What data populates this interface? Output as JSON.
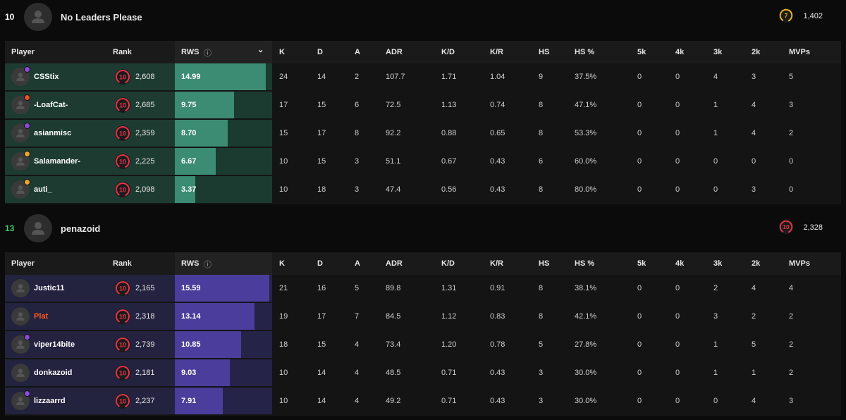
{
  "columns": {
    "player": "Player",
    "rank": "Rank",
    "rws": "RWS",
    "k": "K",
    "d": "D",
    "a": "A",
    "adr": "ADR",
    "kd": "K/D",
    "kr": "K/R",
    "hs": "HS",
    "hsp": "HS %",
    "k5": "5k",
    "k4": "4k",
    "k3": "3k",
    "k2": "2k",
    "mvps": "MVPs"
  },
  "rank_max_rws": 16,
  "teams": [
    {
      "score": "10",
      "name": "No Leaders Please",
      "elo": "1,402",
      "elo_level": "7",
      "colors": {
        "score": "#ffffff",
        "fill": "#3c8b73"
      },
      "players": [
        {
          "name": "CSStix",
          "level": "10",
          "elo": "2,608",
          "rws": "14.99",
          "k": "24",
          "d": "14",
          "a": "2",
          "adr": "107.7",
          "kd": "1.71",
          "kr": "1.04",
          "hs": "9",
          "hsp": "37.5%",
          "k5": "0",
          "k4": "0",
          "k3": "4",
          "k2": "3",
          "mvps": "5",
          "badge": "#8a4bd6",
          "name_color": "#ffffff"
        },
        {
          "name": "-LoafCat-",
          "level": "10",
          "elo": "2,685",
          "rws": "9.75",
          "k": "17",
          "d": "15",
          "a": "6",
          "adr": "72.5",
          "kd": "1.13",
          "kr": "0.74",
          "hs": "8",
          "hsp": "47.1%",
          "k5": "0",
          "k4": "0",
          "k3": "1",
          "k2": "4",
          "mvps": "3",
          "badge": "#e0502c",
          "name_color": "#ffffff"
        },
        {
          "name": "asianmisc",
          "level": "10",
          "elo": "2,359",
          "rws": "8.70",
          "k": "15",
          "d": "17",
          "a": "8",
          "adr": "92.2",
          "kd": "0.88",
          "kr": "0.65",
          "hs": "8",
          "hsp": "53.3%",
          "k5": "0",
          "k4": "0",
          "k3": "1",
          "k2": "4",
          "mvps": "2",
          "badge": "#8a4bd6",
          "name_color": "#ffffff"
        },
        {
          "name": "Salamander-",
          "level": "10",
          "elo": "2,225",
          "rws": "6.67",
          "k": "10",
          "d": "15",
          "a": "3",
          "adr": "51.1",
          "kd": "0.67",
          "kr": "0.43",
          "hs": "6",
          "hsp": "60.0%",
          "k5": "0",
          "k4": "0",
          "k3": "0",
          "k2": "0",
          "mvps": "0",
          "badge": "#e6a531",
          "name_color": "#ffffff"
        },
        {
          "name": "auti_",
          "level": "10",
          "elo": "2,098",
          "rws": "3.37",
          "k": "10",
          "d": "18",
          "a": "3",
          "adr": "47.4",
          "kd": "0.56",
          "kr": "0.43",
          "hs": "8",
          "hsp": "80.0%",
          "k5": "0",
          "k4": "0",
          "k3": "0",
          "k2": "3",
          "mvps": "0",
          "badge": "#e6a531",
          "name_color": "#ffffff"
        }
      ]
    },
    {
      "score": "13",
      "name": "penazoid",
      "elo": "2,328",
      "elo_level": "10",
      "colors": {
        "score": "#3fcf6b",
        "fill": "#4a3d9c"
      },
      "players": [
        {
          "name": "Justic11",
          "level": "10",
          "elo": "2,165",
          "rws": "15.59",
          "k": "21",
          "d": "16",
          "a": "5",
          "adr": "89.8",
          "kd": "1.31",
          "kr": "0.91",
          "hs": "8",
          "hsp": "38.1%",
          "k5": "0",
          "k4": "0",
          "k3": "2",
          "k2": "4",
          "mvps": "4",
          "badge": "",
          "name_color": "#ffffff"
        },
        {
          "name": "Plat",
          "level": "10",
          "elo": "2,318",
          "rws": "13.14",
          "k": "19",
          "d": "17",
          "a": "7",
          "adr": "84.5",
          "kd": "1.12",
          "kr": "0.83",
          "hs": "8",
          "hsp": "42.1%",
          "k5": "0",
          "k4": "0",
          "k3": "3",
          "k2": "2",
          "mvps": "2",
          "badge": "",
          "name_color": "#ff5a1f"
        },
        {
          "name": "viper14bite",
          "level": "10",
          "elo": "2,739",
          "rws": "10.85",
          "k": "18",
          "d": "15",
          "a": "4",
          "adr": "73.4",
          "kd": "1.20",
          "kr": "0.78",
          "hs": "5",
          "hsp": "27.8%",
          "k5": "0",
          "k4": "0",
          "k3": "1",
          "k2": "5",
          "mvps": "2",
          "badge": "#8a4bd6",
          "name_color": "#ffffff"
        },
        {
          "name": "donkazoid",
          "level": "10",
          "elo": "2,181",
          "rws": "9.03",
          "k": "10",
          "d": "14",
          "a": "4",
          "adr": "48.5",
          "kd": "0.71",
          "kr": "0.43",
          "hs": "3",
          "hsp": "30.0%",
          "k5": "0",
          "k4": "0",
          "k3": "1",
          "k2": "1",
          "mvps": "2",
          "badge": "",
          "name_color": "#ffffff"
        },
        {
          "name": "lizzaarrd",
          "level": "10",
          "elo": "2,237",
          "rws": "7.91",
          "k": "10",
          "d": "14",
          "a": "4",
          "adr": "49.2",
          "kd": "0.71",
          "kr": "0.43",
          "hs": "3",
          "hsp": "30.0%",
          "k5": "0",
          "k4": "0",
          "k3": "0",
          "k2": "4",
          "mvps": "3",
          "badge": "#8a4bd6",
          "name_color": "#ffffff"
        }
      ]
    }
  ]
}
